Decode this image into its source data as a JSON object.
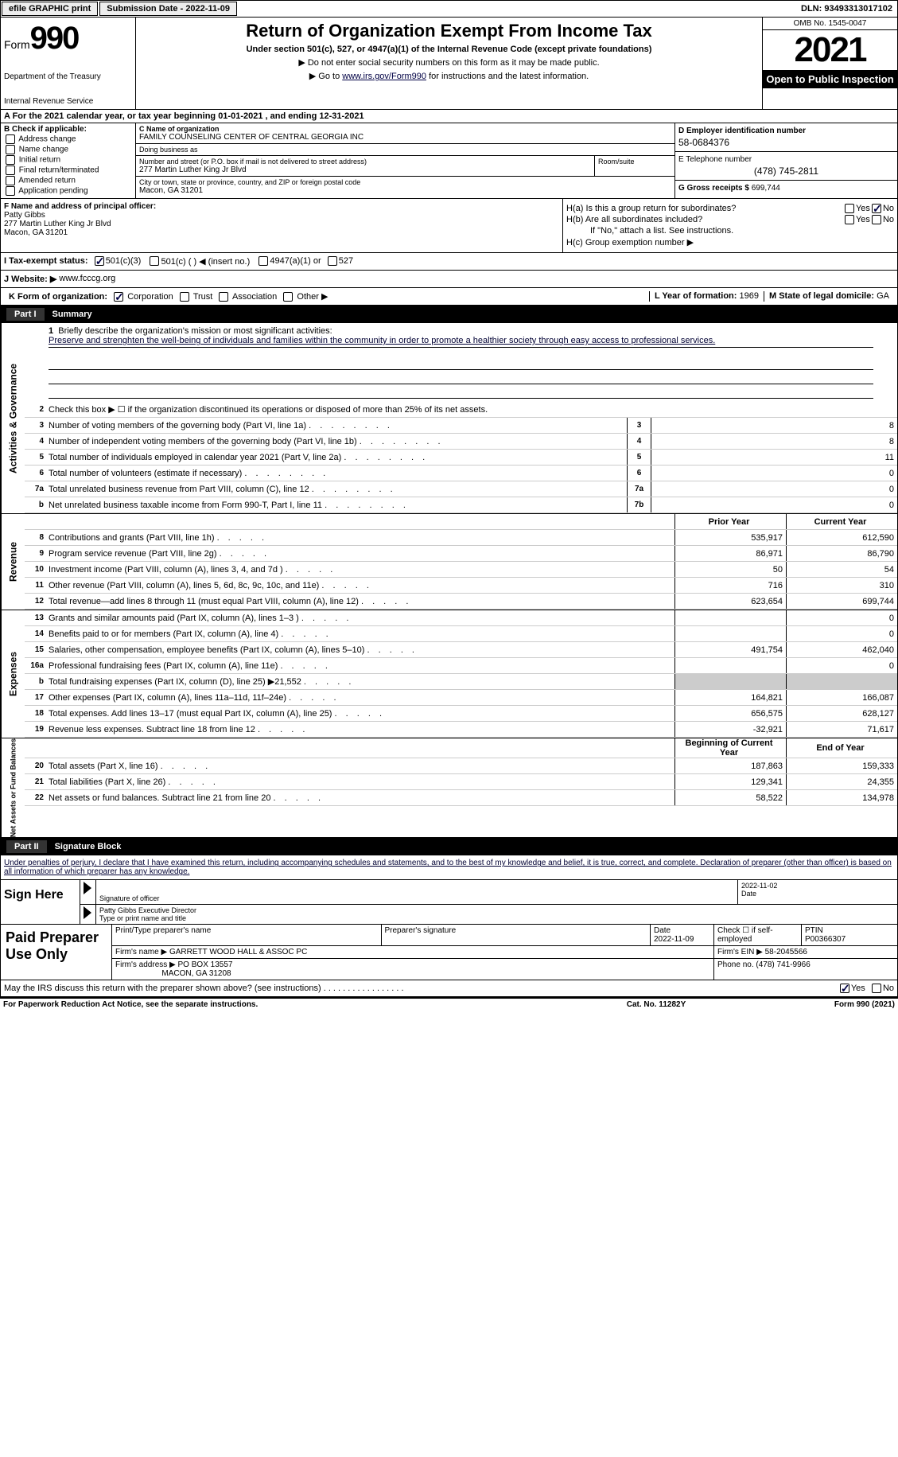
{
  "topbar": {
    "efile": "efile GRAPHIC print",
    "subdate_label": "Submission Date - 2022-11-09",
    "dln": "DLN: 93493313017102"
  },
  "header": {
    "form_word": "Form",
    "form_num": "990",
    "dept1": "Department of the Treasury",
    "dept2": "Internal Revenue Service",
    "title": "Return of Organization Exempt From Income Tax",
    "sub": "Under section 501(c), 527, or 4947(a)(1) of the Internal Revenue Code (except private foundations)",
    "note1": "▶ Do not enter social security numbers on this form as it may be made public.",
    "note2_pre": "▶ Go to ",
    "note2_link": "www.irs.gov/Form990",
    "note2_post": " for instructions and the latest information.",
    "omb": "OMB No. 1545-0047",
    "year": "2021",
    "open": "Open to Public Inspection"
  },
  "calendar": "A For the 2021 calendar year, or tax year beginning 01-01-2021    , and ending 12-31-2021",
  "col_b": {
    "title": "B Check if applicable:",
    "items": [
      "Address change",
      "Name change",
      "Initial return",
      "Final return/terminated",
      "Amended return",
      "Application pending"
    ]
  },
  "col_c": {
    "name_lbl": "C Name of organization",
    "name": "FAMILY COUNSELING CENTER OF CENTRAL GEORGIA INC",
    "dba_lbl": "Doing business as",
    "dba": "",
    "street_lbl": "Number and street (or P.O. box if mail is not delivered to street address)",
    "street": "277 Martin Luther King Jr Blvd",
    "room_lbl": "Room/suite",
    "city_lbl": "City or town, state or province, country, and ZIP or foreign postal code",
    "city": "Macon, GA  31201"
  },
  "col_d": {
    "ein_lbl": "D Employer identification number",
    "ein": "58-0684376",
    "tel_lbl": "E Telephone number",
    "tel": "(478) 745-2811",
    "gross_lbl": "G Gross receipts $",
    "gross": "699,744"
  },
  "fgh": {
    "f_lbl": "F Name and address of principal officer:",
    "f_name": "Patty Gibbs",
    "f_addr1": "277 Martin Luther King Jr Blvd",
    "f_addr2": "Macon, GA  31201",
    "ha_lbl": "H(a)  Is this a group return for subordinates?",
    "hb_lbl": "H(b)  Are all subordinates included?",
    "hb_note": "If \"No,\" attach a list. See instructions.",
    "hc_lbl": "H(c)  Group exemption number ▶",
    "yes": "Yes",
    "no": "No"
  },
  "status": {
    "i_lbl": "I   Tax-exempt status:",
    "opt1": "501(c)(3)",
    "opt2": "501(c) (  ) ◀ (insert no.)",
    "opt3": "4947(a)(1) or",
    "opt4": "527"
  },
  "website": {
    "lbl": "J   Website: ▶",
    "val": "www.fcccg.org"
  },
  "korg": {
    "k_lbl": "K Form of organization:",
    "corp": "Corporation",
    "trust": "Trust",
    "assoc": "Association",
    "other": "Other ▶",
    "l_lbl": "L Year of formation:",
    "l_val": "1969",
    "m_lbl": "M State of legal domicile:",
    "m_val": "GA"
  },
  "part1": {
    "num": "Part I",
    "title": "Summary"
  },
  "summary": {
    "vbar1": "Activities & Governance",
    "line1_lbl": "Briefly describe the organization's mission or most significant activities:",
    "line1_txt": "Preserve and strenghten the well-being of individuals and families within the community in order to promote a healthier society through easy access to professional services.",
    "line2_txt": "Check this box ▶ ☐  if the organization discontinued its operations or disposed of more than 25% of its net assets.",
    "rows_gov": [
      {
        "n": "3",
        "t": "Number of voting members of the governing body (Part VI, line 1a)",
        "box": "3",
        "v": "8"
      },
      {
        "n": "4",
        "t": "Number of independent voting members of the governing body (Part VI, line 1b)",
        "box": "4",
        "v": "8"
      },
      {
        "n": "5",
        "t": "Total number of individuals employed in calendar year 2021 (Part V, line 2a)",
        "box": "5",
        "v": "11"
      },
      {
        "n": "6",
        "t": "Total number of volunteers (estimate if necessary)",
        "box": "6",
        "v": "0"
      },
      {
        "n": "7a",
        "t": "Total unrelated business revenue from Part VIII, column (C), line 12",
        "box": "7a",
        "v": "0"
      },
      {
        "n": "b",
        "t": "Net unrelated business taxable income from Form 990-T, Part I, line 11",
        "box": "7b",
        "v": "0"
      }
    ],
    "hdr_prior": "Prior Year",
    "hdr_current": "Current Year",
    "vbar2": "Revenue",
    "rows_rev": [
      {
        "n": "8",
        "t": "Contributions and grants (Part VIII, line 1h)",
        "p": "535,917",
        "c": "612,590"
      },
      {
        "n": "9",
        "t": "Program service revenue (Part VIII, line 2g)",
        "p": "86,971",
        "c": "86,790"
      },
      {
        "n": "10",
        "t": "Investment income (Part VIII, column (A), lines 3, 4, and 7d )",
        "p": "50",
        "c": "54"
      },
      {
        "n": "11",
        "t": "Other revenue (Part VIII, column (A), lines 5, 6d, 8c, 9c, 10c, and 11e)",
        "p": "716",
        "c": "310"
      },
      {
        "n": "12",
        "t": "Total revenue—add lines 8 through 11 (must equal Part VIII, column (A), line 12)",
        "p": "623,654",
        "c": "699,744"
      }
    ],
    "vbar3": "Expenses",
    "rows_exp": [
      {
        "n": "13",
        "t": "Grants and similar amounts paid (Part IX, column (A), lines 1–3 )",
        "p": "",
        "c": "0"
      },
      {
        "n": "14",
        "t": "Benefits paid to or for members (Part IX, column (A), line 4)",
        "p": "",
        "c": "0"
      },
      {
        "n": "15",
        "t": "Salaries, other compensation, employee benefits (Part IX, column (A), lines 5–10)",
        "p": "491,754",
        "c": "462,040"
      },
      {
        "n": "16a",
        "t": "Professional fundraising fees (Part IX, column (A), line 11e)",
        "p": "",
        "c": "0"
      },
      {
        "n": "b",
        "t": "Total fundraising expenses (Part IX, column (D), line 25) ▶21,552",
        "p": "SHADE",
        "c": "SHADE"
      },
      {
        "n": "17",
        "t": "Other expenses (Part IX, column (A), lines 11a–11d, 11f–24e)",
        "p": "164,821",
        "c": "166,087"
      },
      {
        "n": "18",
        "t": "Total expenses. Add lines 13–17 (must equal Part IX, column (A), line 25)",
        "p": "656,575",
        "c": "628,127"
      },
      {
        "n": "19",
        "t": "Revenue less expenses. Subtract line 18 from line 12",
        "p": "-32,921",
        "c": "71,617"
      }
    ],
    "vbar4": "Net Assets or Fund Balances",
    "hdr_beg": "Beginning of Current Year",
    "hdr_end": "End of Year",
    "rows_net": [
      {
        "n": "20",
        "t": "Total assets (Part X, line 16)",
        "p": "187,863",
        "c": "159,333"
      },
      {
        "n": "21",
        "t": "Total liabilities (Part X, line 26)",
        "p": "129,341",
        "c": "24,355"
      },
      {
        "n": "22",
        "t": "Net assets or fund balances. Subtract line 21 from line 20",
        "p": "58,522",
        "c": "134,978"
      }
    ]
  },
  "part2": {
    "num": "Part II",
    "title": "Signature Block"
  },
  "sig": {
    "decl": "Under penalties of perjury, I declare that I have examined this return, including accompanying schedules and statements, and to the best of my knowledge and belief, it is true, correct, and complete. Declaration of preparer (other than officer) is based on all information of which preparer has any knowledge.",
    "sign_here": "Sign Here",
    "sig_officer": "Signature of officer",
    "date_lbl": "Date",
    "date_val": "2022-11-02",
    "name_title": "Patty Gibbs  Executive Director",
    "type_name": "Type or print name and title"
  },
  "prep": {
    "paid": "Paid Preparer Use Only",
    "print_lbl": "Print/Type preparer's name",
    "sig_lbl": "Preparer's signature",
    "pdate_lbl": "Date",
    "pdate": "2022-11-09",
    "check_lbl": "Check ☐ if self-employed",
    "ptin_lbl": "PTIN",
    "ptin": "P00366307",
    "firm_name_lbl": "Firm's name     ▶",
    "firm_name": "GARRETT WOOD HALL & ASSOC PC",
    "firm_ein_lbl": "Firm's EIN ▶",
    "firm_ein": "58-2045566",
    "firm_addr_lbl": "Firm's address ▶",
    "firm_addr1": "PO BOX 13557",
    "firm_addr2": "MACON, GA  31208",
    "phone_lbl": "Phone no.",
    "phone": "(478) 741-9966"
  },
  "discuss": {
    "txt": "May the IRS discuss this return with the preparer shown above? (see instructions)",
    "yes": "Yes",
    "no": "No"
  },
  "footer": {
    "left": "For Paperwork Reduction Act Notice, see the separate instructions.",
    "mid": "Cat. No. 11282Y",
    "right": "Form 990 (2021)"
  }
}
